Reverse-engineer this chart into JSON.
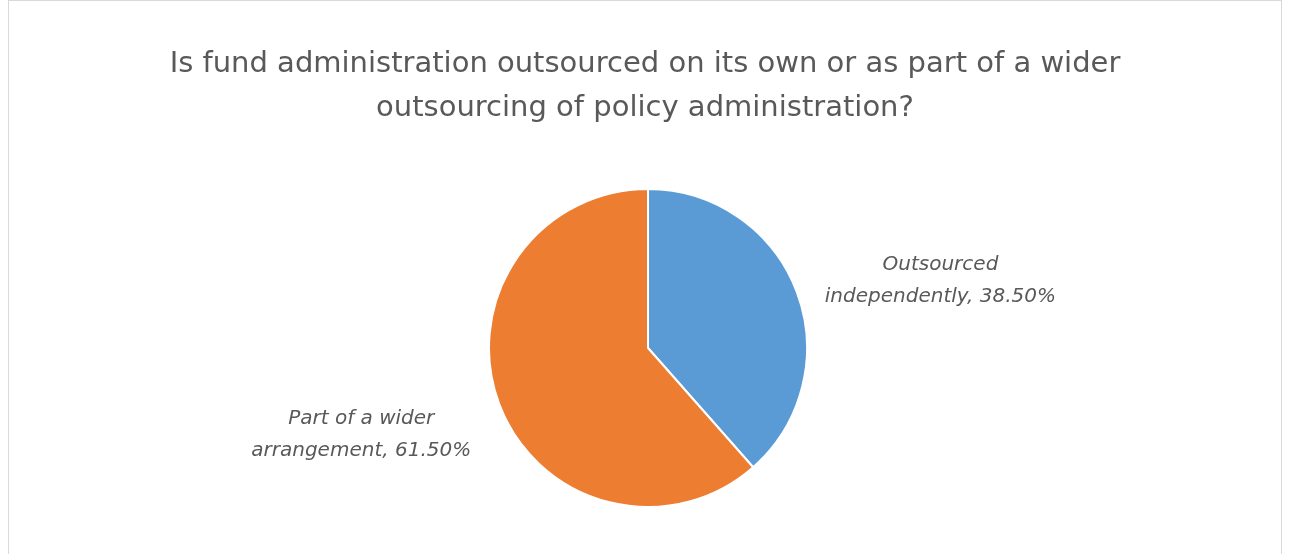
{
  "chart_data": {
    "type": "pie",
    "title": "Is fund administration outsourced on its own or as part of a wider outsourcing of policy administration?",
    "categories": [
      "Outsourced independently",
      "Part of a wider arrangement"
    ],
    "values": [
      38.5,
      61.5
    ],
    "colors": [
      "#5b9bd5",
      "#ed7d31"
    ],
    "value_labels": [
      "38.50%",
      "61.50%"
    ]
  }
}
